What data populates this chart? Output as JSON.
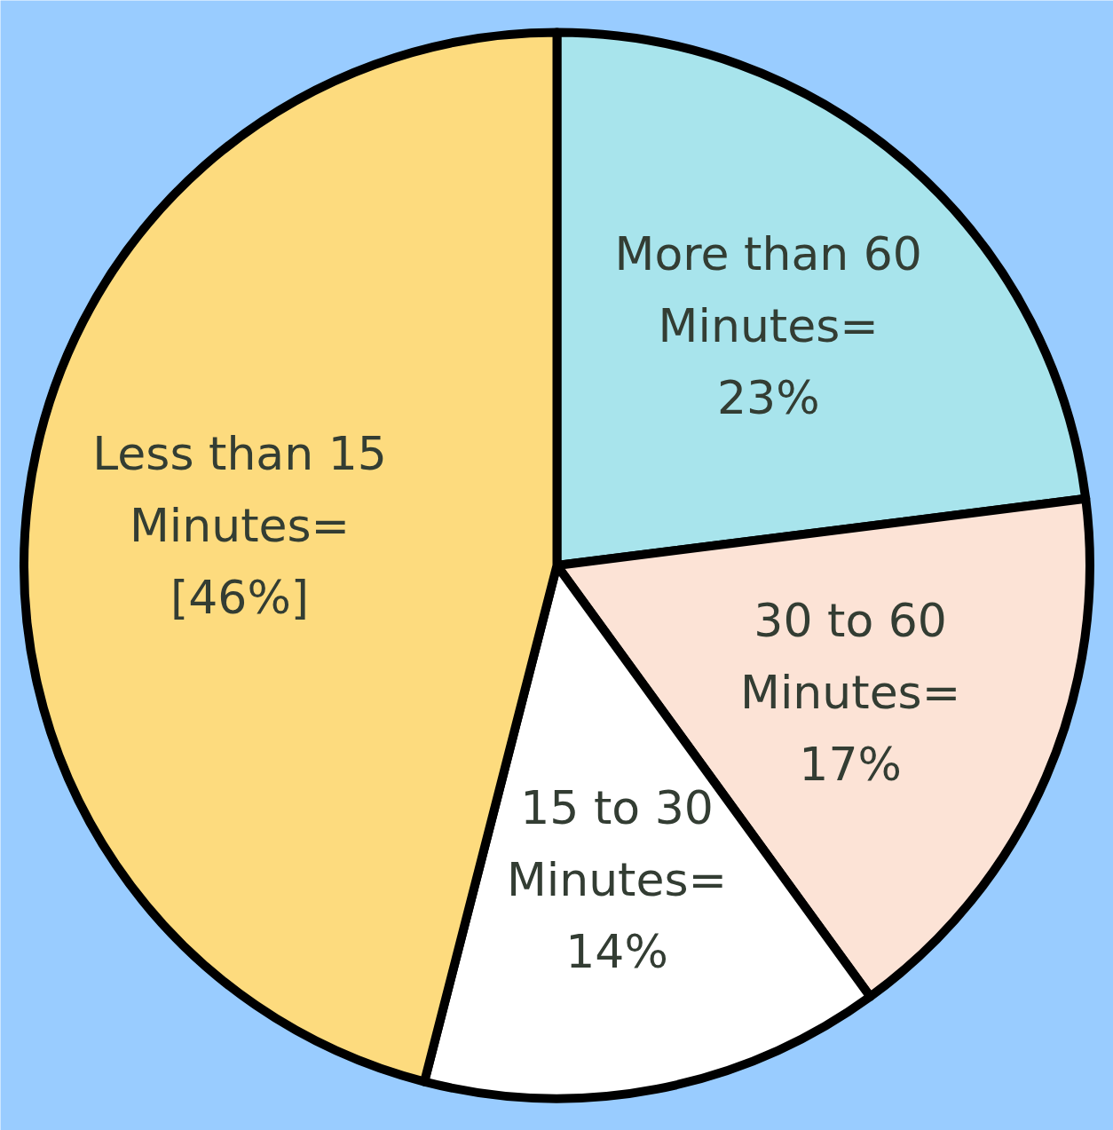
{
  "chart_data": {
    "type": "pie",
    "categories": [
      "More than 60 Minutes=",
      "30 to 60 Minutes=",
      "15 to 30 Minutes=",
      "Less than 15 Minutes="
    ],
    "values": [
      23,
      17,
      14,
      46
    ],
    "colors": [
      "#a8e4ec",
      "#fce3d6",
      "#ffffff",
      "#fddb7e"
    ],
    "value_labels": [
      "23%",
      "17%",
      "14%",
      "[46%]"
    ]
  }
}
